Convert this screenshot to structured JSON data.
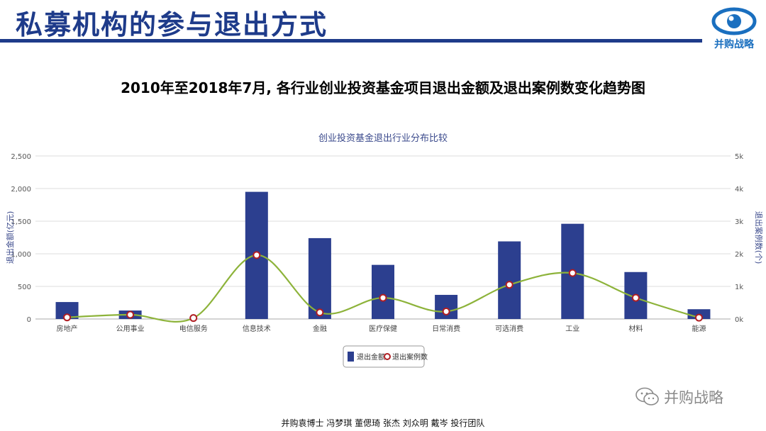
{
  "slide": {
    "title": "私募机构的参与退出方式",
    "logo_text": "并购战略",
    "heading": "2010年至2018年7月, 各行业创业投资基金项目退出金额及退出案例数变化趋势图",
    "watermark": "并购战略",
    "credits": "并购袁博士 冯梦琪 董偲琦 张杰 刘众明 戴岑 投行团队"
  },
  "colors": {
    "brand": "#1e3b8a",
    "bar": "#2c3f8f",
    "line": "#8db33a",
    "marker_stroke": "#b01e23"
  },
  "chart_data": {
    "type": "bar",
    "title": "创业投资基金退出行业分布比较",
    "categories": [
      "房地产",
      "公用事业",
      "电信服务",
      "信息技术",
      "金融",
      "医疗保健",
      "日常消费",
      "可选消费",
      "工业",
      "材料",
      "能源"
    ],
    "ylabel": "退出金额(亿元)",
    "y2label": "退出案例数(个)",
    "ylim": [
      0,
      2500
    ],
    "y2lim": [
      0,
      5000
    ],
    "yticks": [
      "0",
      "500",
      "1,000",
      "1,500",
      "2,000",
      "2,500"
    ],
    "y2ticks": [
      "0k",
      "1k",
      "2k",
      "3k",
      "4k",
      "5k"
    ],
    "grid": true,
    "legend_position": "bottom",
    "series": [
      {
        "name": "退出金额",
        "type": "bar",
        "axis": "left",
        "values": [
          260,
          130,
          0,
          1950,
          1240,
          830,
          370,
          1190,
          1460,
          720,
          150
        ]
      },
      {
        "name": "退出案例数",
        "type": "line",
        "smooth": true,
        "axis": "right",
        "values": [
          50,
          130,
          30,
          1960,
          200,
          650,
          230,
          1050,
          1410,
          650,
          40
        ]
      }
    ]
  }
}
